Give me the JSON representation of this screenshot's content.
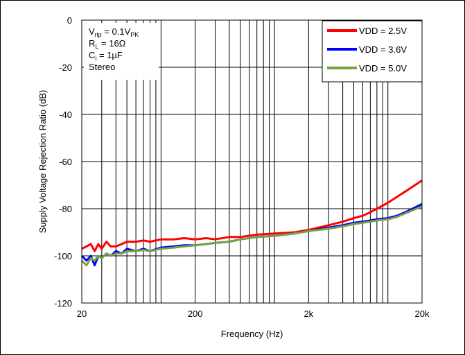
{
  "chart_data": {
    "type": "line",
    "title": "",
    "xlabel": "Frequency (Hz)",
    "ylabel": "Supply Voltage Rejection Ratio (dB)",
    "xscale": "log",
    "xlim": [
      20,
      20000
    ],
    "ylim": [
      -120,
      0
    ],
    "x_ticks": [
      {
        "value": 20,
        "label": "20"
      },
      {
        "value": 200,
        "label": "200"
      },
      {
        "value": 2000,
        "label": "2k"
      },
      {
        "value": 20000,
        "label": "20k"
      }
    ],
    "y_ticks": [
      {
        "value": 0,
        "label": "0"
      },
      {
        "value": -20,
        "label": "-20"
      },
      {
        "value": -40,
        "label": "-40"
      },
      {
        "value": -60,
        "label": "-60"
      },
      {
        "value": -80,
        "label": "-80"
      },
      {
        "value": -100,
        "label": "-100"
      },
      {
        "value": -120,
        "label": "-120"
      }
    ],
    "grid": true,
    "legend": {
      "position": "top-right"
    },
    "conditions": {
      "line1": {
        "main": "V",
        "sub": "rip",
        "rest": " = 0.1V",
        "sub2": "PK"
      },
      "line2": {
        "main": "R",
        "sub": "L",
        "rest": " = 16Ω"
      },
      "line3": {
        "main": "C",
        "sub": "i",
        "rest": " = 1µF"
      },
      "line4": "Stereo"
    },
    "series": [
      {
        "name": "VDD = 2.5V",
        "color": "#ff0000",
        "points": [
          [
            20,
            -97
          ],
          [
            22,
            -96
          ],
          [
            24,
            -95
          ],
          [
            26,
            -98
          ],
          [
            28,
            -95
          ],
          [
            30,
            -97
          ],
          [
            33,
            -94
          ],
          [
            36,
            -96
          ],
          [
            40,
            -96
          ],
          [
            45,
            -95
          ],
          [
            50,
            -94
          ],
          [
            60,
            -94
          ],
          [
            70,
            -93.5
          ],
          [
            80,
            -94
          ],
          [
            100,
            -93
          ],
          [
            130,
            -93
          ],
          [
            160,
            -92.5
          ],
          [
            200,
            -93
          ],
          [
            250,
            -92.5
          ],
          [
            300,
            -93
          ],
          [
            400,
            -92
          ],
          [
            500,
            -92
          ],
          [
            700,
            -91
          ],
          [
            1000,
            -90.5
          ],
          [
            1500,
            -90
          ],
          [
            2000,
            -89
          ],
          [
            3000,
            -87
          ],
          [
            4000,
            -85.5
          ],
          [
            5000,
            -84
          ],
          [
            6000,
            -83
          ],
          [
            7000,
            -81.5
          ],
          [
            8000,
            -80
          ],
          [
            10000,
            -77.5
          ],
          [
            12000,
            -75
          ],
          [
            15000,
            -72
          ],
          [
            20000,
            -68
          ]
        ]
      },
      {
        "name": "VDD = 3.6V",
        "color": "#0000ff",
        "points": [
          [
            20,
            -100
          ],
          [
            22,
            -102
          ],
          [
            24,
            -100
          ],
          [
            26,
            -104
          ],
          [
            28,
            -100
          ],
          [
            30,
            -101
          ],
          [
            33,
            -99
          ],
          [
            36,
            -100
          ],
          [
            40,
            -98
          ],
          [
            45,
            -99
          ],
          [
            50,
            -97
          ],
          [
            60,
            -98
          ],
          [
            70,
            -97
          ],
          [
            80,
            -98
          ],
          [
            100,
            -96.5
          ],
          [
            130,
            -96
          ],
          [
            160,
            -95.5
          ],
          [
            200,
            -95.5
          ],
          [
            250,
            -95
          ],
          [
            300,
            -94.5
          ],
          [
            400,
            -94
          ],
          [
            500,
            -93
          ],
          [
            700,
            -92
          ],
          [
            1000,
            -91.5
          ],
          [
            1500,
            -90.5
          ],
          [
            2000,
            -89.5
          ],
          [
            3000,
            -88
          ],
          [
            4000,
            -87
          ],
          [
            5000,
            -86
          ],
          [
            6000,
            -85.5
          ],
          [
            7000,
            -85
          ],
          [
            8000,
            -84.5
          ],
          [
            10000,
            -84
          ],
          [
            12000,
            -83
          ],
          [
            15000,
            -81
          ],
          [
            20000,
            -78
          ]
        ]
      },
      {
        "name": "VDD = 5.0V",
        "color": "#77a33f",
        "points": [
          [
            20,
            -102
          ],
          [
            22,
            -104
          ],
          [
            24,
            -101
          ],
          [
            26,
            -102
          ],
          [
            28,
            -100
          ],
          [
            30,
            -101
          ],
          [
            33,
            -99
          ],
          [
            36,
            -100
          ],
          [
            40,
            -99
          ],
          [
            45,
            -99
          ],
          [
            50,
            -98
          ],
          [
            60,
            -98
          ],
          [
            70,
            -97.5
          ],
          [
            80,
            -98
          ],
          [
            100,
            -97
          ],
          [
            130,
            -96.5
          ],
          [
            160,
            -96
          ],
          [
            200,
            -95.5
          ],
          [
            250,
            -95
          ],
          [
            300,
            -94.5
          ],
          [
            400,
            -94
          ],
          [
            500,
            -93
          ],
          [
            700,
            -92
          ],
          [
            1000,
            -91.5
          ],
          [
            1500,
            -90.5
          ],
          [
            2000,
            -89.5
          ],
          [
            3000,
            -88.5
          ],
          [
            4000,
            -87.5
          ],
          [
            5000,
            -86.5
          ],
          [
            6000,
            -86
          ],
          [
            7000,
            -85.5
          ],
          [
            8000,
            -85
          ],
          [
            10000,
            -84.5
          ],
          [
            12000,
            -83.5
          ],
          [
            15000,
            -81.5
          ],
          [
            20000,
            -79
          ]
        ]
      }
    ]
  }
}
